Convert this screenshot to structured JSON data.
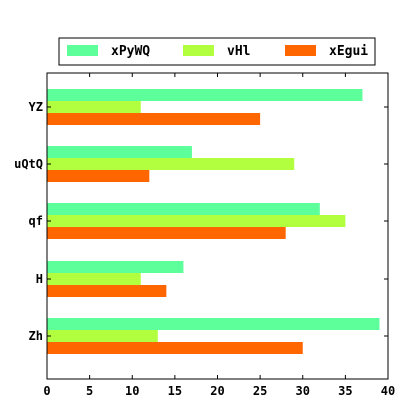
{
  "chart_data": {
    "type": "bar",
    "orientation": "horizontal",
    "categories": [
      "YZ",
      "uQtQ",
      "qf",
      "H",
      "Zh"
    ],
    "series": [
      {
        "name": "xPyWQ",
        "color": "#5cff9a",
        "values": [
          37,
          17,
          32,
          16,
          39
        ]
      },
      {
        "name": "vHl",
        "color": "#b2ff3f",
        "values": [
          11,
          29,
          35,
          11,
          13
        ]
      },
      {
        "name": "xEgui",
        "color": "#ff6600",
        "values": [
          25,
          12,
          28,
          14,
          30
        ]
      }
    ],
    "xlim": [
      0,
      40
    ],
    "xticks": [
      0,
      5,
      10,
      15,
      20,
      25,
      30,
      35,
      40
    ],
    "grid": false,
    "legend_position": "top"
  }
}
